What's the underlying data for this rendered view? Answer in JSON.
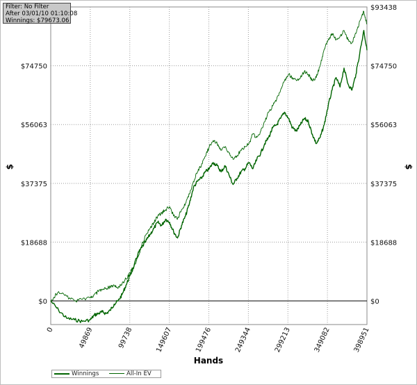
{
  "info_box": {
    "filter": "Filter: No Filter",
    "after": "After 03/01/10 01:10:08",
    "winnings": "Winnings: $79673.06"
  },
  "chart_data": {
    "type": "line",
    "title": "",
    "xlabel": "Hands",
    "ylabel": "$",
    "xlim": [
      0,
      398951
    ],
    "ylim": [
      -7500,
      93438
    ],
    "x_ticks": [
      0,
      49869,
      99738,
      149607,
      199476,
      249344,
      299213,
      349082,
      398951
    ],
    "x_tick_labels": [
      "0",
      "49869",
      "99738",
      "149607",
      "199476",
      "249344",
      "299213",
      "349082",
      "398951"
    ],
    "y_ticks": [
      0,
      18688,
      37375,
      56063,
      74750,
      93438
    ],
    "y_tick_labels": [
      "$0",
      "$18688",
      "$37375",
      "$56063",
      "$74750",
      "$93438"
    ],
    "grid": true,
    "legend_position": "bottom-left",
    "series": [
      {
        "name": "Winnings",
        "color": "#006400",
        "x": [
          0,
          10000,
          20000,
          30000,
          40000,
          50000,
          55000,
          60000,
          65000,
          70000,
          75000,
          80000,
          85000,
          90000,
          95000,
          100000,
          105000,
          110000,
          115000,
          120000,
          125000,
          130000,
          135000,
          140000,
          145000,
          150000,
          155000,
          160000,
          165000,
          170000,
          175000,
          180000,
          185000,
          190000,
          195000,
          200000,
          205000,
          210000,
          215000,
          220000,
          225000,
          230000,
          235000,
          240000,
          245000,
          250000,
          255000,
          260000,
          265000,
          270000,
          275000,
          280000,
          285000,
          290000,
          295000,
          300000,
          305000,
          310000,
          315000,
          320000,
          325000,
          330000,
          335000,
          340000,
          345000,
          350000,
          355000,
          360000,
          365000,
          370000,
          375000,
          380000,
          385000,
          390000,
          395000,
          398951
        ],
        "values": [
          0,
          -3000,
          -5500,
          -6000,
          -6500,
          -6000,
          -4500,
          -4000,
          -3500,
          -4000,
          -3000,
          -1000,
          0,
          2000,
          5000,
          8000,
          11000,
          15000,
          17000,
          19000,
          21000,
          23000,
          25000,
          24000,
          26000,
          25000,
          22000,
          20000,
          24000,
          27000,
          31000,
          36000,
          38000,
          39000,
          41000,
          42000,
          44000,
          43000,
          41000,
          43000,
          40000,
          37000,
          39000,
          41000,
          42000,
          44000,
          42000,
          45000,
          47000,
          50000,
          52000,
          55000,
          56000,
          58000,
          60000,
          58000,
          55000,
          54000,
          56000,
          58000,
          57000,
          53000,
          50000,
          52000,
          56000,
          62000,
          67000,
          71000,
          68000,
          74000,
          69000,
          67000,
          72000,
          79000,
          86000,
          79673
        ]
      },
      {
        "name": "All-In EV",
        "color": "#006400",
        "x": [
          0,
          10000,
          20000,
          30000,
          40000,
          50000,
          55000,
          60000,
          65000,
          70000,
          75000,
          80000,
          85000,
          90000,
          95000,
          100000,
          105000,
          110000,
          115000,
          120000,
          125000,
          130000,
          135000,
          140000,
          145000,
          150000,
          155000,
          160000,
          165000,
          170000,
          175000,
          180000,
          185000,
          190000,
          195000,
          200000,
          205000,
          210000,
          215000,
          220000,
          225000,
          230000,
          235000,
          240000,
          245000,
          250000,
          255000,
          260000,
          265000,
          270000,
          275000,
          280000,
          285000,
          290000,
          295000,
          300000,
          305000,
          310000,
          315000,
          320000,
          325000,
          330000,
          335000,
          340000,
          345000,
          350000,
          355000,
          360000,
          365000,
          370000,
          375000,
          380000,
          385000,
          390000,
          395000,
          398951
        ],
        "values": [
          0,
          3000,
          1500,
          0,
          500,
          1000,
          2000,
          3000,
          3500,
          4000,
          4500,
          5000,
          4000,
          5500,
          7000,
          9000,
          11000,
          14000,
          18000,
          21000,
          23000,
          25000,
          27000,
          28000,
          29000,
          30000,
          27000,
          26000,
          29000,
          31000,
          34000,
          38000,
          41000,
          43000,
          46000,
          49000,
          51000,
          50000,
          48000,
          49000,
          47000,
          45000,
          46000,
          48000,
          49000,
          50000,
          53000,
          52000,
          54000,
          57000,
          60000,
          62000,
          64000,
          67000,
          70000,
          72000,
          71000,
          70000,
          71000,
          73000,
          72000,
          70000,
          71000,
          75000,
          80000,
          83000,
          85000,
          83000,
          84000,
          86000,
          83000,
          82000,
          85000,
          89000,
          92000,
          88000
        ]
      }
    ]
  }
}
